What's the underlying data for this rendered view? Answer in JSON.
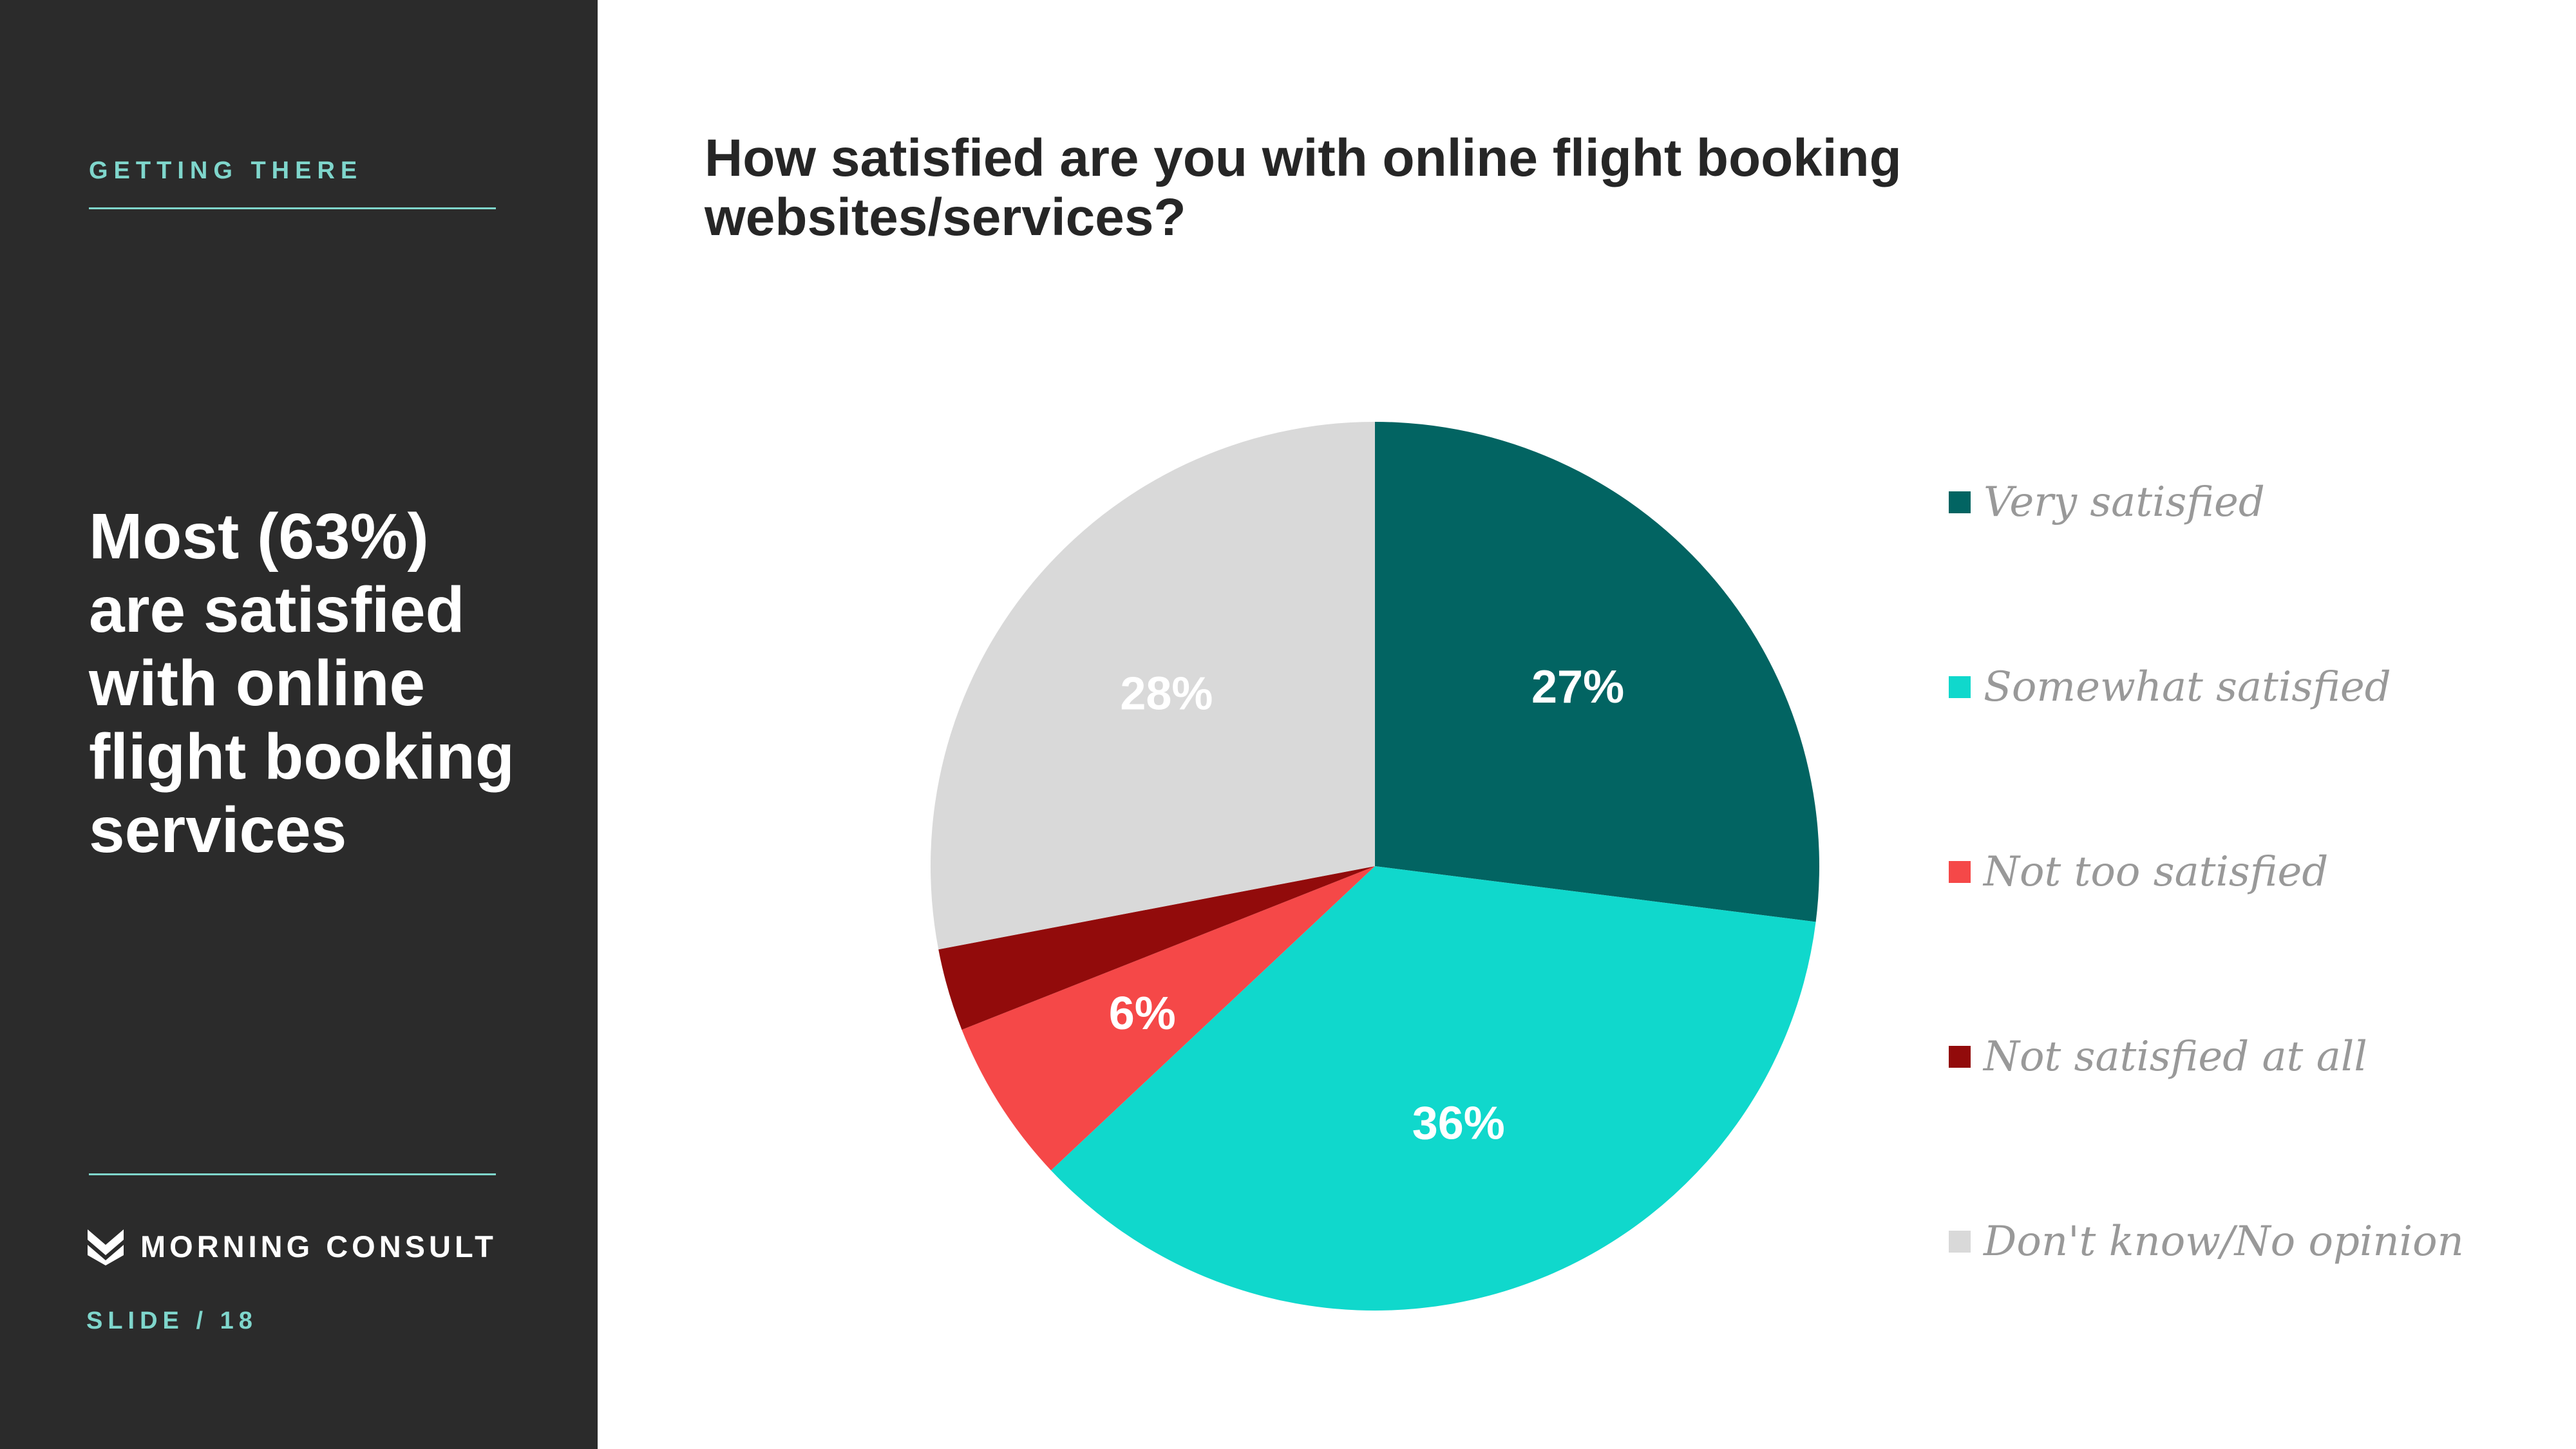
{
  "sidebar": {
    "section_label": "GETTING THERE",
    "headline": "Most (63%)\nare satisfied\nwith online\nflight booking\nservices",
    "logo_text": "MORNING CONSULT",
    "slide_label": "SLIDE /  18"
  },
  "colors": {
    "sidebar_bg": "#2b2b2b",
    "accent": "#7fd6cc"
  },
  "chart_data": {
    "type": "pie",
    "title": "How satisfied are you with online flight booking websites/services?",
    "legend_position": "right",
    "start_angle_deg": 0,
    "direction": "clockwise",
    "slices": [
      {
        "label": "Very satisfied",
        "value": 27,
        "display": "27%",
        "color": "#026462"
      },
      {
        "label": "Somewhat satisfied",
        "value": 36,
        "display": "36%",
        "color": "#10d8cc"
      },
      {
        "label": "Not too satisfied",
        "value": 6,
        "display": "6%",
        "color": "#f54848"
      },
      {
        "label": "Not satisfied at all",
        "value": 3,
        "display": "",
        "color": "#920b0b"
      },
      {
        "label": "Don't know/No opinion",
        "value": 28,
        "display": "28%",
        "color": "#d9d9d9"
      }
    ]
  }
}
